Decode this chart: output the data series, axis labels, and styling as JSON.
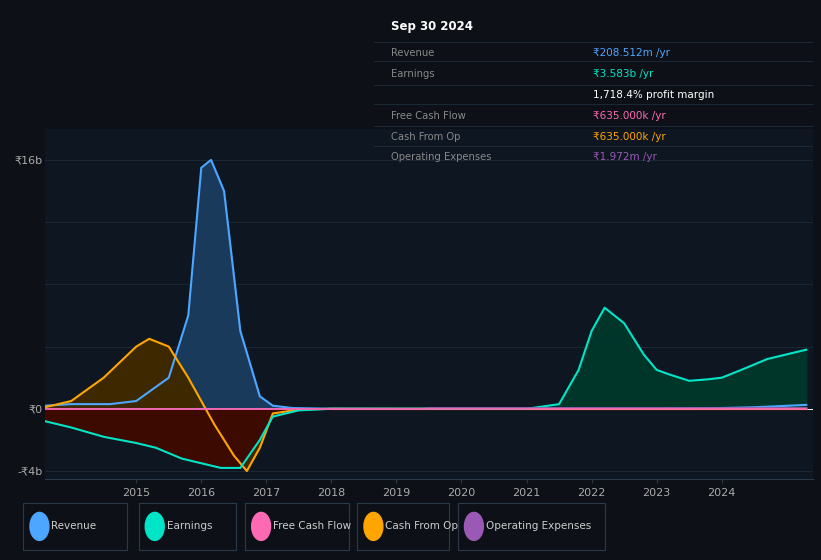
{
  "bg_color": "#0d1117",
  "plot_bg_color": "#0e1621",
  "grid_color": "#1e2d3d",
  "zero_line_color": "#ffffff",
  "ylim": [
    -4500000000.0,
    18000000000.0
  ],
  "xlim": [
    2013.6,
    2025.4
  ],
  "xticks": [
    2015,
    2016,
    2017,
    2018,
    2019,
    2020,
    2021,
    2022,
    2023,
    2024
  ],
  "series": {
    "Revenue": {
      "color": "#4da6ff",
      "fill_color": "#1a3a5c",
      "linewidth": 1.5
    },
    "Earnings": {
      "color": "#00e5c8",
      "fill_color": "#00352a",
      "linewidth": 1.5
    },
    "Free Cash Flow": {
      "color": "#ff69b4",
      "fill_color": "#4a0030",
      "linewidth": 1.2
    },
    "Cash From Op": {
      "color": "#ffa500",
      "fill_color": "#3d2800",
      "linewidth": 1.5
    },
    "Operating Expenses": {
      "color": "#9b59b6",
      "fill_color": "#2d1040",
      "linewidth": 1.2
    }
  },
  "info_box": {
    "title": "Sep 30 2024",
    "title_color": "#ffffff",
    "bg_color": "#060d16",
    "border_color": "#2a3a4a",
    "rows": [
      {
        "label": "Revenue",
        "value": "₹208.512m /yr",
        "value_color": "#4da6ff",
        "label_color": "#888888"
      },
      {
        "label": "Earnings",
        "value": "₹3.583b /yr",
        "value_color": "#00e5c8",
        "label_color": "#888888"
      },
      {
        "label": "",
        "value": "1,718.4% profit margin",
        "value_color": "#ffffff",
        "label_color": "#888888"
      },
      {
        "label": "Free Cash Flow",
        "value": "₹635.000k /yr",
        "value_color": "#ff69b4",
        "label_color": "#888888"
      },
      {
        "label": "Cash From Op",
        "value": "₹635.000k /yr",
        "value_color": "#ffa500",
        "label_color": "#888888"
      },
      {
        "label": "Operating Expenses",
        "value": "₹1.972m /yr",
        "value_color": "#9b59b6",
        "label_color": "#888888"
      }
    ]
  },
  "legend": [
    {
      "label": "Revenue",
      "color": "#4da6ff"
    },
    {
      "label": "Earnings",
      "color": "#00e5c8"
    },
    {
      "label": "Free Cash Flow",
      "color": "#ff69b4"
    },
    {
      "label": "Cash From Op",
      "color": "#ffa500"
    },
    {
      "label": "Operating Expenses",
      "color": "#9b59b6"
    }
  ]
}
